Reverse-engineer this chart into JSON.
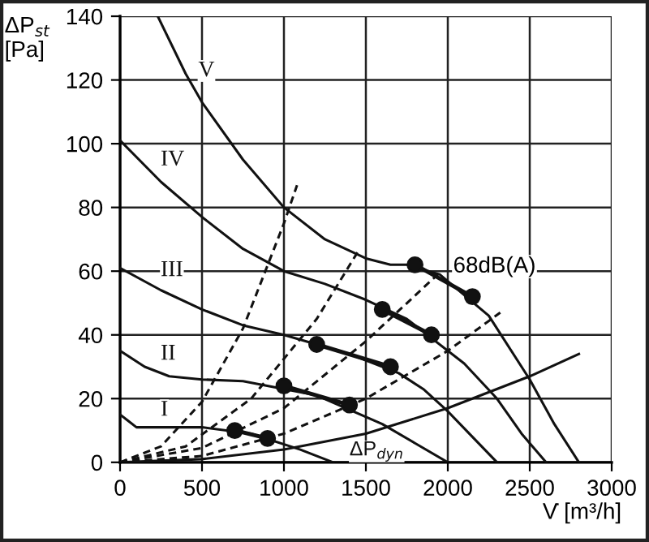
{
  "chart_data": {
    "type": "line",
    "xlabel": "V̇ [m³/h]",
    "ylabel": "ΔP$_{st}$\n[Pa]",
    "xlim": [
      0,
      3000
    ],
    "xticks": [
      0,
      500,
      1000,
      1500,
      2000,
      2500,
      3000
    ],
    "ylim": [
      0,
      140
    ],
    "yticks": [
      0,
      20,
      40,
      60,
      80,
      100,
      120,
      140
    ],
    "grid": true,
    "legend": false,
    "annotations": [
      {
        "text": "68dB(A)",
        "x": 1950,
        "y": 60
      }
    ],
    "series": [
      {
        "name": "V",
        "color": "#111111",
        "line_style": "solid",
        "x": [
          230,
          400,
          500,
          750,
          1000,
          1250,
          1500,
          1650,
          1750,
          1950,
          2250,
          2500,
          2650,
          2800
        ],
        "values": [
          140,
          122,
          113,
          95,
          80,
          70,
          64,
          62,
          62,
          59,
          46,
          26,
          12,
          0
        ]
      },
      {
        "name": "IV",
        "color": "#111111",
        "line_style": "solid",
        "x": [
          0,
          250,
          500,
          750,
          1000,
          1250,
          1500,
          1750,
          2100,
          2300,
          2450,
          2600
        ],
        "values": [
          101,
          88,
          77,
          67,
          60,
          56,
          51,
          45,
          31,
          20,
          9,
          0
        ]
      },
      {
        "name": "III",
        "color": "#111111",
        "line_style": "solid",
        "x": [
          0,
          250,
          500,
          750,
          1000,
          1400,
          1700,
          1850,
          2000,
          2150,
          2300
        ],
        "values": [
          61,
          54,
          48,
          43,
          40,
          34,
          28,
          23,
          16,
          8,
          0
        ]
      },
      {
        "name": "II",
        "color": "#111111",
        "line_style": "solid",
        "x": [
          0,
          150,
          300,
          500,
          750,
          1200,
          1600,
          1800,
          2000
        ],
        "values": [
          35,
          30,
          27,
          26,
          25.5,
          21,
          12,
          6,
          0
        ]
      },
      {
        "name": "I",
        "color": "#111111",
        "line_style": "solid",
        "x": [
          0,
          50,
          100,
          250,
          500,
          800,
          1100,
          1300
        ],
        "values": [
          15,
          13,
          11,
          11,
          11,
          9,
          4,
          0
        ]
      },
      {
        "name": "ΔP$_{dyn}$",
        "color": "#111111",
        "line_style": "solid",
        "x": [
          0,
          500,
          1000,
          1500,
          2000,
          2500,
          2800
        ],
        "values": [
          0,
          1,
          4,
          9,
          17,
          27,
          34
        ]
      },
      {
        "color": "#111111",
        "line_style": "dashed",
        "x": [
          0,
          250,
          500,
          750,
          1000,
          1080
        ],
        "values": [
          0,
          5,
          19,
          42,
          75,
          87
        ]
      },
      {
        "color": "#111111",
        "line_style": "dashed",
        "x": [
          0,
          400,
          800,
          1200,
          1450
        ],
        "values": [
          0,
          5,
          20,
          45,
          66
        ]
      },
      {
        "color": "#111111",
        "line_style": "dashed",
        "x": [
          0,
          500,
          1000,
          1500,
          1960
        ],
        "values": [
          0,
          4.5,
          17,
          38,
          60
        ]
      },
      {
        "color": "#111111",
        "line_style": "dashed",
        "x": [
          0,
          500,
          1000,
          1500,
          2000,
          2320
        ],
        "values": [
          0,
          2,
          9,
          20,
          35,
          47
        ]
      },
      {
        "color": "#111111",
        "line_style": "solid",
        "marker": "circle",
        "x": [
          700,
          900
        ],
        "values": [
          10,
          7.5
        ]
      },
      {
        "color": "#111111",
        "line_style": "solid",
        "marker": "circle",
        "x": [
          1000,
          1400
        ],
        "values": [
          24,
          18
        ]
      },
      {
        "color": "#111111",
        "line_style": "solid",
        "marker": "circle",
        "x": [
          1200,
          1650
        ],
        "values": [
          37,
          30
        ]
      },
      {
        "color": "#111111",
        "line_style": "solid",
        "marker": "circle",
        "x": [
          1600,
          1900
        ],
        "values": [
          48,
          40
        ]
      },
      {
        "color": "#111111",
        "line_style": "solid",
        "marker": "circle",
        "x": [
          1800,
          2150
        ],
        "values": [
          62,
          52
        ]
      }
    ]
  }
}
